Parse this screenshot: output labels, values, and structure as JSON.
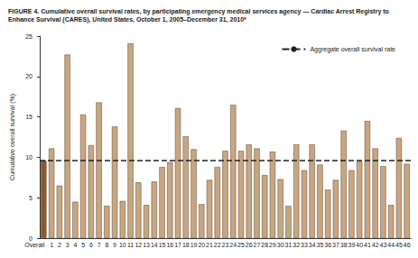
{
  "chart_data": {
    "type": "bar",
    "title": "FIGURE 4. Cumulative overall survival rates, by participating emergency medical services agency — Cardiac Arrest Registry to Enhance Survival (CARES), United States, October 1, 2005–December 31, 2010*",
    "y_label": "Cumulative overall survival (%)",
    "categories": [
      "Overall",
      "1",
      "2",
      "3",
      "4",
      "5",
      "6",
      "7",
      "8",
      "9",
      "10",
      "11",
      "12",
      "13",
      "14",
      "15",
      "16",
      "17",
      "18",
      "19",
      "20",
      "21",
      "22",
      "23",
      "24",
      "25",
      "26",
      "27",
      "28",
      "29",
      "30",
      "31",
      "32",
      "33",
      "34",
      "35",
      "36",
      "37",
      "38",
      "39",
      "40",
      "41",
      "42",
      "43",
      "44",
      "45",
      "46"
    ],
    "values": [
      9.6,
      11.1,
      6.5,
      22.7,
      4.5,
      15.3,
      11.5,
      16.8,
      4.0,
      13.8,
      4.6,
      24.1,
      6.9,
      4.1,
      7.0,
      8.8,
      9.4,
      16.1,
      12.6,
      11.0,
      4.2,
      7.2,
      8.8,
      10.8,
      16.5,
      10.8,
      11.6,
      11.1,
      7.8,
      10.7,
      7.3,
      4.0,
      11.6,
      8.4,
      11.6,
      9.1,
      6.0,
      7.2,
      13.3,
      8.4,
      9.5,
      14.5,
      11.1,
      8.9,
      4.1,
      12.4,
      9.2
    ],
    "colors": [
      "#8c5a2e",
      "#c8a681",
      "#c8a681",
      "#c8a681",
      "#c8a681",
      "#c8a681",
      "#c8a681",
      "#c8a681",
      "#c8a681",
      "#c8a681",
      "#c8a681",
      "#c8a681",
      "#c8a681",
      "#c8a681",
      "#c8a681",
      "#c8a681",
      "#c8a681",
      "#c8a681",
      "#c8a681",
      "#c8a681",
      "#c8a681",
      "#c8a681",
      "#c8a681",
      "#c8a681",
      "#c8a681",
      "#c8a681",
      "#c8a681",
      "#c8a681",
      "#c8a681",
      "#c8a681",
      "#c8a681",
      "#c8a681",
      "#c8a681",
      "#c8a681",
      "#c8a681",
      "#c8a681",
      "#c8a681",
      "#c8a681",
      "#c8a681",
      "#c8a681",
      "#c8a681",
      "#c8a681",
      "#c8a681",
      "#c8a681",
      "#c8a681",
      "#c8a681",
      "#c8a681"
    ],
    "reference_line": {
      "name": "Aggregate overall survival rate",
      "value": 9.6,
      "color": "#222222",
      "line_style": "dashed"
    },
    "ylim": [
      0,
      25
    ],
    "yticks": [
      0,
      5,
      10,
      15,
      20,
      25
    ],
    "grid": false,
    "legend": "top-right"
  }
}
